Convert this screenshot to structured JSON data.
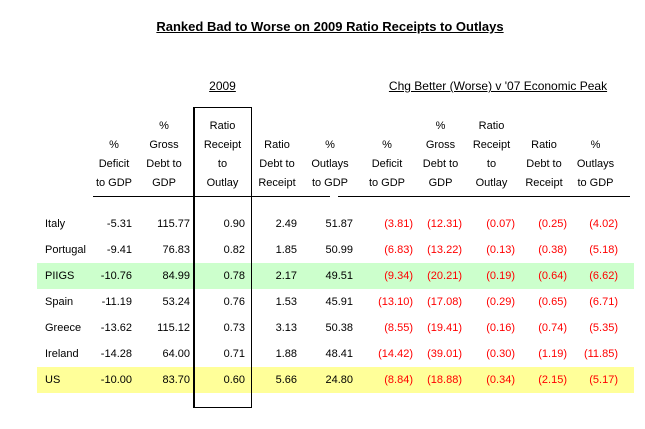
{
  "page": {
    "title": "Ranked Bad to Worse on 2009 Ratio Receipts to Outlays",
    "group_label_2009": "2009",
    "group_label_chg": "Chg Better (Worse) v '07 Economic Peak"
  },
  "colors": {
    "highlight_green": "#ccffcc",
    "highlight_yellow": "#ffff99",
    "negative_red": "#ff0000",
    "text": "#000000",
    "background": "#ffffff"
  },
  "table": {
    "headers_2009": [
      "%\nDeficit\nto GDP",
      "%\nGross\nDebt to\nGDP",
      "Ratio\nReceipt\nto\nOutlay",
      "Ratio\nDebt to\nReceipt",
      "%\nOutlays\nto GDP"
    ],
    "headers_chg": [
      "%\nDeficit\nto GDP",
      "%\nGross\nDebt to\nGDP",
      "Ratio\nReceipt\nto\nOutlay",
      "Ratio\nDebt to\nReceipt",
      "%\nOutlays\nto GDP"
    ],
    "rows": [
      {
        "country": "Italy",
        "y2009": [
          "-5.31",
          "115.77",
          "0.90",
          "2.49",
          "51.87"
        ],
        "chg": [
          "(3.81)",
          "(12.31)",
          "(0.07)",
          "(0.25)",
          "(4.02)"
        ]
      },
      {
        "country": "Portugal",
        "y2009": [
          "-9.41",
          "76.83",
          "0.82",
          "1.85",
          "50.99"
        ],
        "chg": [
          "(6.83)",
          "(13.22)",
          "(0.13)",
          "(0.38)",
          "(5.18)"
        ]
      },
      {
        "country": "PIIGS",
        "y2009": [
          "-10.76",
          "84.99",
          "0.78",
          "2.17",
          "49.51"
        ],
        "chg": [
          "(9.34)",
          "(20.21)",
          "(0.19)",
          "(0.64)",
          "(6.62)"
        ]
      },
      {
        "country": "Spain",
        "y2009": [
          "-11.19",
          "53.24",
          "0.76",
          "1.53",
          "45.91"
        ],
        "chg": [
          "(13.10)",
          "(17.08)",
          "(0.29)",
          "(0.65)",
          "(6.71)"
        ]
      },
      {
        "country": "Greece",
        "y2009": [
          "-13.62",
          "115.12",
          "0.73",
          "3.13",
          "50.38"
        ],
        "chg": [
          "(8.55)",
          "(19.41)",
          "(0.16)",
          "(0.74)",
          "(5.35)"
        ]
      },
      {
        "country": "Ireland",
        "y2009": [
          "-14.28",
          "64.00",
          "0.71",
          "1.88",
          "48.41"
        ],
        "chg": [
          "(14.42)",
          "(39.01)",
          "(0.30)",
          "(1.19)",
          "(11.85)"
        ]
      },
      {
        "country": "US",
        "y2009": [
          "-10.00",
          "83.70",
          "0.60",
          "5.66",
          "24.80"
        ],
        "chg": [
          "(8.84)",
          "(18.88)",
          "(0.34)",
          "(2.15)",
          "(5.17)"
        ]
      }
    ]
  },
  "chart_data": {
    "type": "table",
    "title": "Ranked Bad to Worse on 2009 Ratio Receipts to Outlays",
    "column_groups": [
      {
        "label": "2009",
        "columns": [
          0,
          1,
          2,
          3,
          4
        ]
      },
      {
        "label": "Chg Better (Worse) v '07 Economic Peak",
        "columns": [
          5,
          6,
          7,
          8,
          9
        ]
      }
    ],
    "columns": [
      "% Deficit to GDP",
      "% Gross Debt to GDP",
      "Ratio Receipt to Outlay",
      "Ratio Debt to Receipt",
      "% Outlays to GDP",
      "Chg % Deficit to GDP",
      "Chg % Gross Debt to GDP",
      "Chg Ratio Receipt to Outlay",
      "Chg Ratio Debt to Receipt",
      "Chg % Outlays to GDP"
    ],
    "row_labels": [
      "Italy",
      "Portugal",
      "PIIGS",
      "Spain",
      "Greece",
      "Ireland",
      "US"
    ],
    "rows": [
      [
        -5.31,
        115.77,
        0.9,
        2.49,
        51.87,
        -3.81,
        -12.31,
        -0.07,
        -0.25,
        -4.02
      ],
      [
        -9.41,
        76.83,
        0.82,
        1.85,
        50.99,
        -6.83,
        -13.22,
        -0.13,
        -0.38,
        -5.18
      ],
      [
        -10.76,
        84.99,
        0.78,
        2.17,
        49.51,
        -9.34,
        -20.21,
        -0.19,
        -0.64,
        -6.62
      ],
      [
        -11.19,
        53.24,
        0.76,
        1.53,
        45.91,
        -13.1,
        -17.08,
        -0.29,
        -0.65,
        -6.71
      ],
      [
        -13.62,
        115.12,
        0.73,
        3.13,
        50.38,
        -8.55,
        -19.41,
        -0.16,
        -0.74,
        -5.35
      ],
      [
        -14.28,
        64.0,
        0.71,
        1.88,
        48.41,
        -14.42,
        -39.01,
        -0.3,
        -1.19,
        -11.85
      ],
      [
        -10.0,
        83.7,
        0.6,
        5.66,
        24.8,
        -8.84,
        -18.88,
        -0.34,
        -2.15,
        -5.17
      ]
    ],
    "highlighted_rows": [
      {
        "label": "PIIGS",
        "color": "#ccffcc"
      },
      {
        "label": "US",
        "color": "#ffff99"
      }
    ],
    "notes": "Negative change values shown in red parentheses; 'Ratio Receipt to Outlay' 2009 column outlined with black box; rows ranked from bad to worse on 2009 ratio of receipts to outlays."
  }
}
